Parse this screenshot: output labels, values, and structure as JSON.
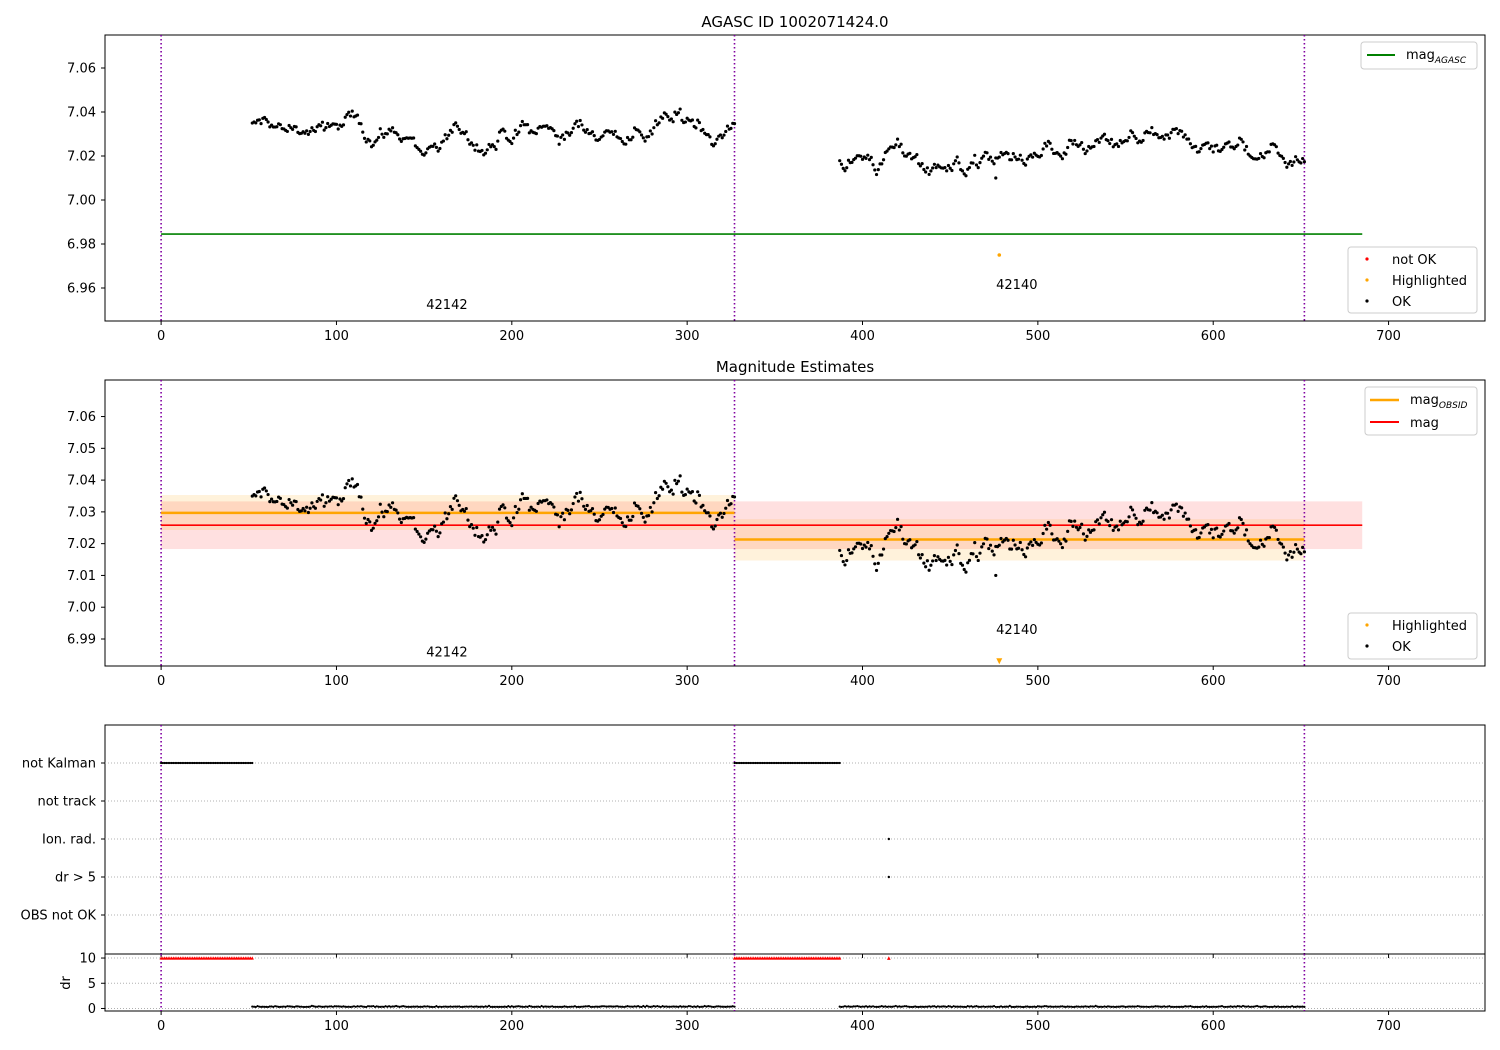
{
  "chart_data": [
    {
      "type": "scatter",
      "panel": "agasc",
      "title": "AGASC ID 1002071424.0",
      "xlim": [
        -32,
        755
      ],
      "ylim": [
        6.945,
        7.075
      ],
      "xticks": [
        0,
        100,
        200,
        300,
        400,
        500,
        600,
        700
      ],
      "yticks": [
        6.96,
        6.98,
        7.0,
        7.02,
        7.04,
        7.06
      ],
      "obsid_boundaries": [
        0,
        327,
        652
      ],
      "obsid_labels": [
        {
          "text": "42142",
          "x": 163,
          "y": 6.9505
        },
        {
          "text": "42140",
          "x": 488,
          "y": 6.9595
        }
      ],
      "agasc_mag": {
        "value": 6.9845,
        "x_range": [
          0,
          685
        ],
        "color": "#008000"
      },
      "highlighted_points": [
        {
          "x": 478,
          "y": 6.975
        }
      ],
      "ok_segments": [
        {
          "x_start": 52,
          "x_end": 327,
          "mean": 7.03
        },
        {
          "x_start": 387,
          "x_end": 652,
          "mean": 7.021
        }
      ],
      "outlier_points": [
        {
          "x": 476,
          "y": 7.01
        }
      ],
      "legend_top": [
        "mag_AGASC"
      ],
      "legend_bottom": [
        "not OK",
        "Highlighted",
        "OK"
      ],
      "colors": {
        "ok": "#000000",
        "not_ok": "#ff0000",
        "highlighted": "#ffa500"
      }
    },
    {
      "type": "scatter",
      "panel": "estimates",
      "title": "Magnitude Estimates",
      "xlim": [
        -32,
        755
      ],
      "ylim": [
        6.9815,
        7.0715
      ],
      "xticks": [
        0,
        100,
        200,
        300,
        400,
        500,
        600,
        700
      ],
      "yticks": [
        6.99,
        7.0,
        7.01,
        7.02,
        7.03,
        7.04,
        7.05,
        7.06
      ],
      "obsid_boundaries": [
        0,
        327,
        652
      ],
      "obsid_labels": [
        {
          "text": "42142",
          "x": 163,
          "y": 6.9845
        },
        {
          "text": "42140",
          "x": 488,
          "y": 6.9915
        }
      ],
      "mag": {
        "value": 7.0258,
        "band": [
          7.0183,
          7.0333
        ],
        "x_range": [
          0,
          685
        ],
        "color": "#ff0000"
      },
      "mag_obsid": [
        {
          "x_range": [
            0,
            327
          ],
          "value": 7.0297,
          "band": [
            7.0243,
            7.0353
          ]
        },
        {
          "x_range": [
            327,
            652
          ],
          "value": 7.0213,
          "band": [
            7.0147,
            7.0277
          ]
        }
      ],
      "highlighted_points": [
        {
          "x": 478,
          "y": 6.983
        }
      ],
      "ok_segments": [
        {
          "x_start": 52,
          "x_end": 327,
          "mean": 7.03
        },
        {
          "x_start": 387,
          "x_end": 652,
          "mean": 7.021
        }
      ],
      "outlier_points": [
        {
          "x": 476,
          "y": 7.01
        }
      ],
      "legend_top": [
        "mag_OBSID",
        "mag"
      ],
      "legend_bottom": [
        "Highlighted",
        "OK"
      ]
    },
    {
      "type": "scatter",
      "panel": "flags",
      "xlim": [
        -32,
        755
      ],
      "categories": [
        "not Kalman",
        "not track",
        "Ion. rad.",
        "dr > 5",
        "OBS not OK"
      ],
      "flag_ranges": [
        {
          "flag": "not Kalman",
          "x_ranges": [
            [
              0,
              52
            ],
            [
              327,
              387
            ]
          ]
        }
      ],
      "flag_points": [
        {
          "flag": "Ion. rad.",
          "x": 415
        },
        {
          "flag": "dr > 5",
          "x": 415
        }
      ],
      "obsid_boundaries": [
        0,
        327,
        652
      ]
    },
    {
      "type": "scatter",
      "panel": "dr",
      "ylabel": "dr",
      "xlim": [
        -32,
        755
      ],
      "ylim": [
        -0.5,
        10.8
      ],
      "xticks": [
        0,
        100,
        200,
        300,
        400,
        500,
        600,
        700
      ],
      "yticks": [
        0,
        5,
        10
      ],
      "clipped_value": 10,
      "clipped_ranges": [
        [
          0,
          52
        ],
        [
          327,
          387
        ]
      ],
      "clipped_points": [
        415
      ],
      "baseline_ranges": [
        [
          52,
          327
        ],
        [
          387,
          652
        ]
      ],
      "baseline_level": 0.3,
      "obsid_boundaries": [
        0,
        327,
        652
      ]
    }
  ],
  "labels": {
    "title1": "AGASC ID 1002071424.0",
    "title2": "Magnitude Estimates",
    "obsid_a": "42142",
    "obsid_b": "42140",
    "legend_mag_agasc": "mag",
    "legend_mag_agasc_sub": "AGASC",
    "legend_not_ok": "not OK",
    "legend_highlighted": "Highlighted",
    "legend_ok": "OK",
    "legend_mag_obsid": "mag",
    "legend_mag_obsid_sub": "OBSID",
    "legend_mag": "mag",
    "dr_ylabel": "dr"
  }
}
